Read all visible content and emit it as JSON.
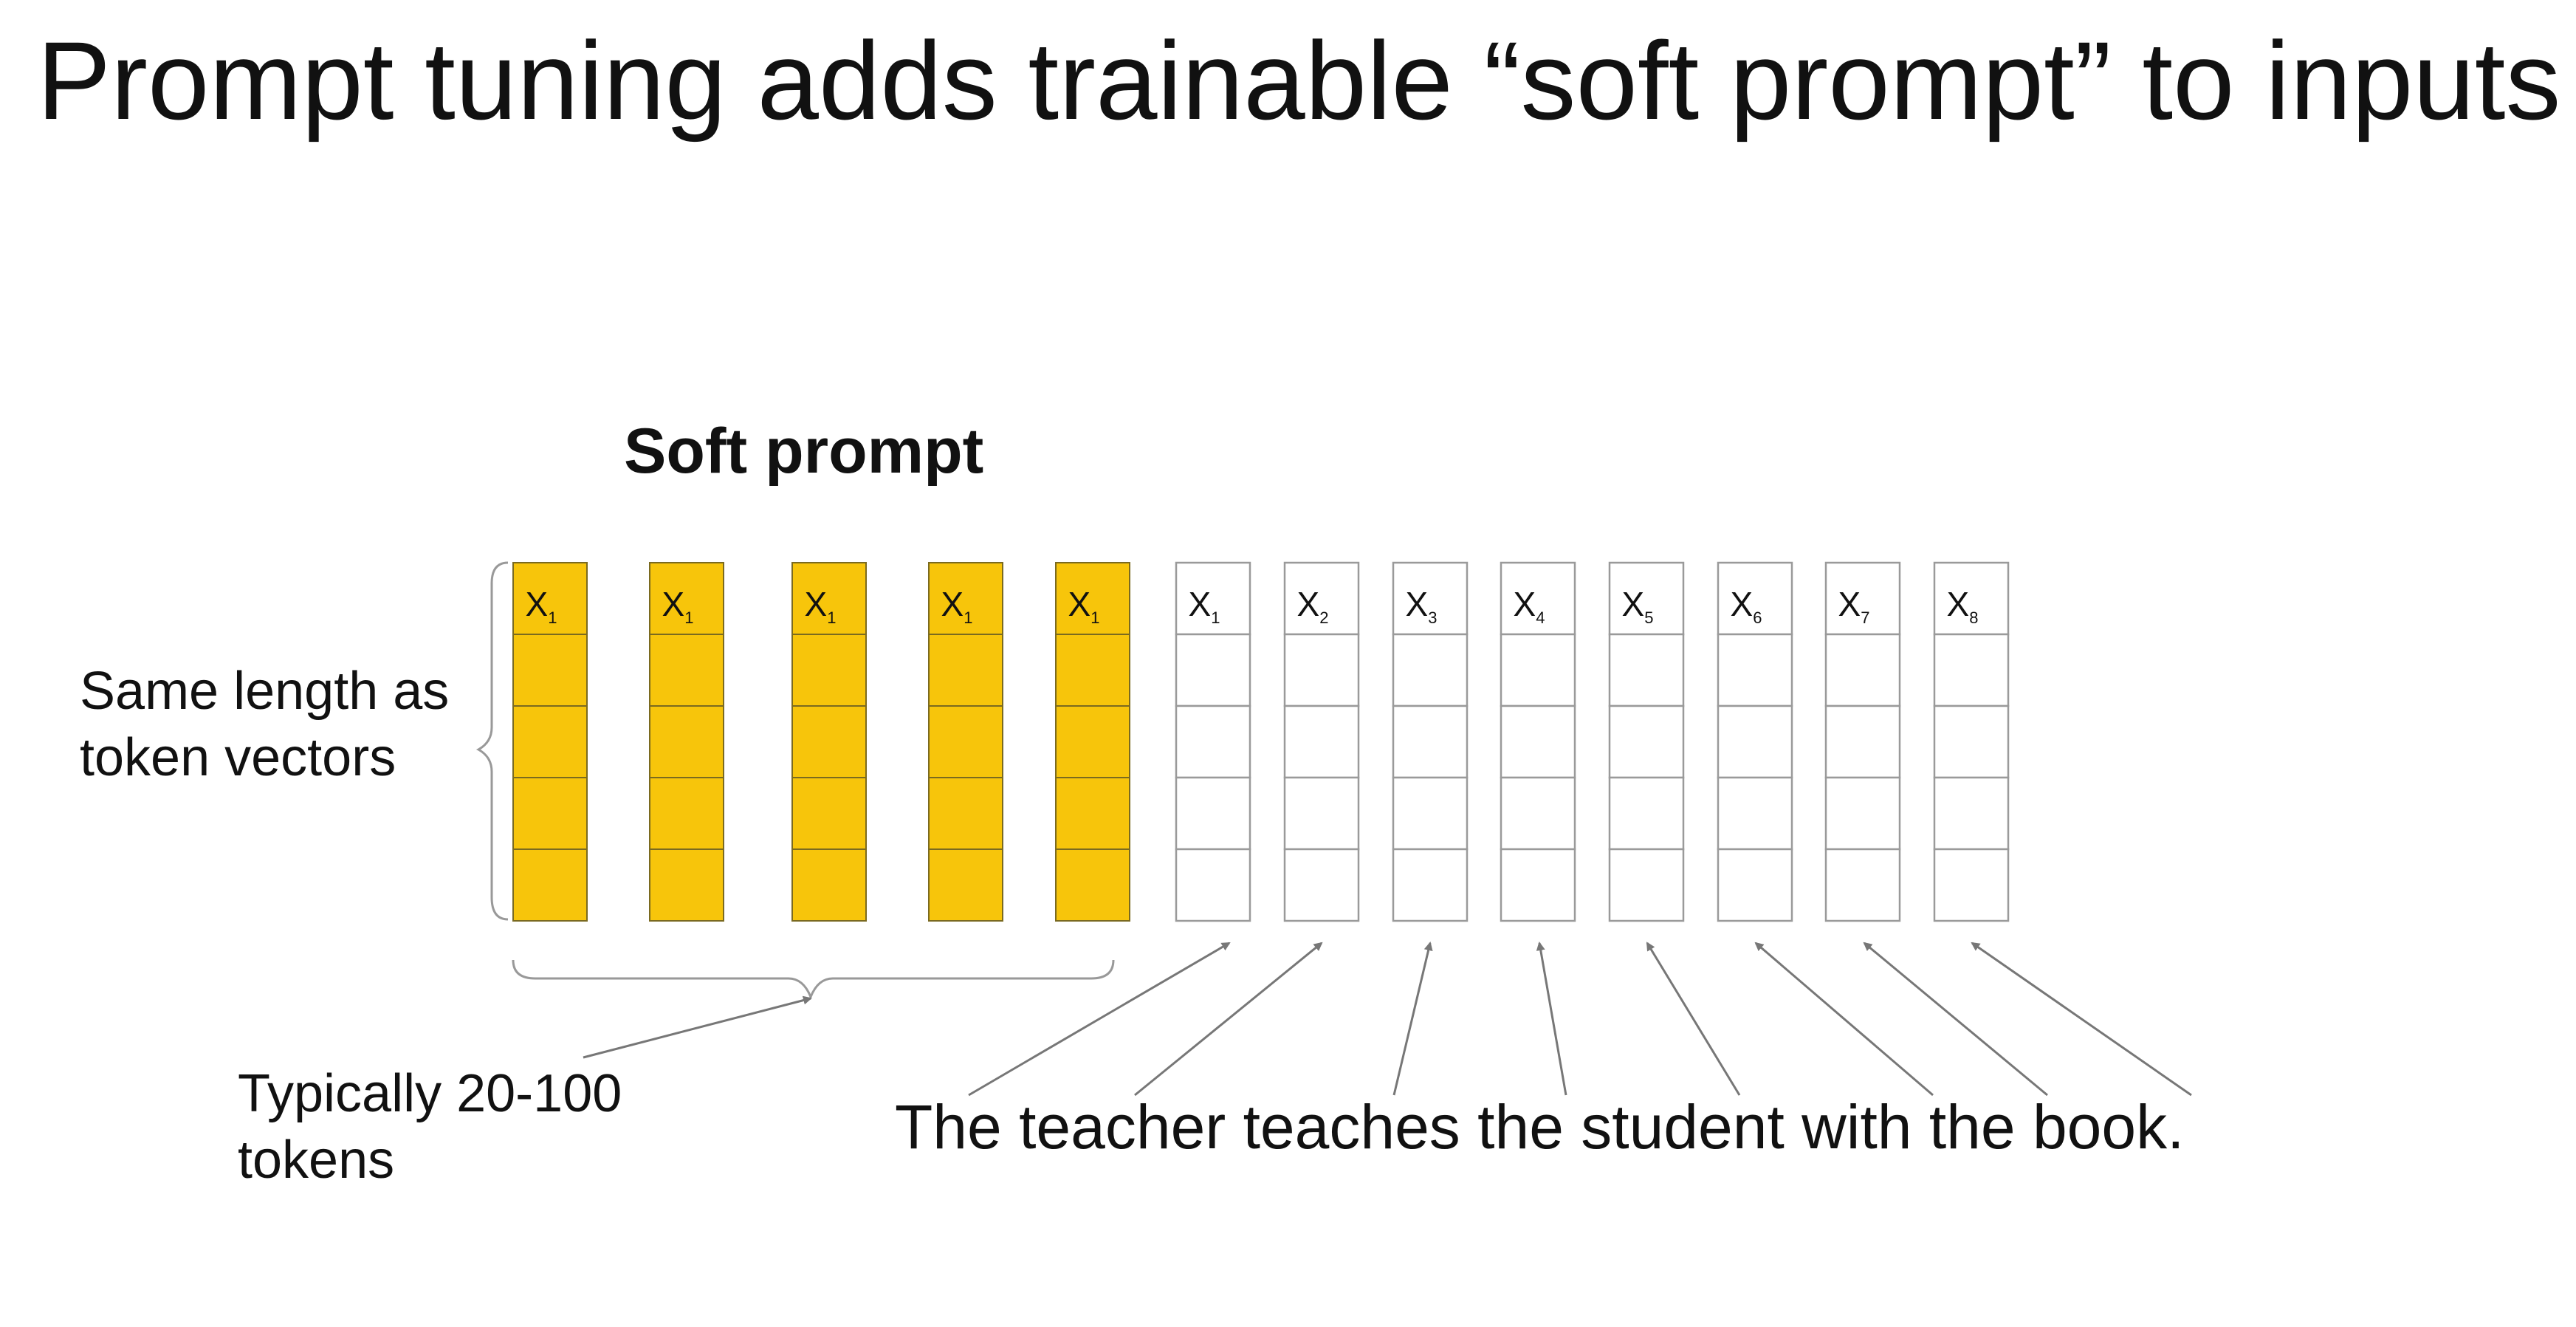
{
  "title": "Prompt tuning adds trainable “soft prompt” to inputs",
  "soft_prompt_label": "Soft prompt",
  "side_label": {
    "line1": "Same length as",
    "line2": "token vectors"
  },
  "count_label": {
    "line1": "Typically 20-100",
    "line2": "tokens"
  },
  "sentence": "The teacher teaches the student with the book.",
  "colors": {
    "soft": "#f7c50b",
    "soft_border": "#7a6a20",
    "token_border": "#9a9a9a",
    "text": "#111111",
    "arrow": "#777777"
  },
  "soft_tokens": [
    {
      "base": "X",
      "sub": "1"
    },
    {
      "base": "X",
      "sub": "1"
    },
    {
      "base": "X",
      "sub": "1"
    },
    {
      "base": "X",
      "sub": "1"
    },
    {
      "base": "X",
      "sub": "1"
    }
  ],
  "input_tokens": [
    {
      "base": "X",
      "sub": "1"
    },
    {
      "base": "X",
      "sub": "2"
    },
    {
      "base": "X",
      "sub": "3"
    },
    {
      "base": "X",
      "sub": "4"
    },
    {
      "base": "X",
      "sub": "5"
    },
    {
      "base": "X",
      "sub": "6"
    },
    {
      "base": "X",
      "sub": "7"
    },
    {
      "base": "X",
      "sub": "8"
    }
  ]
}
